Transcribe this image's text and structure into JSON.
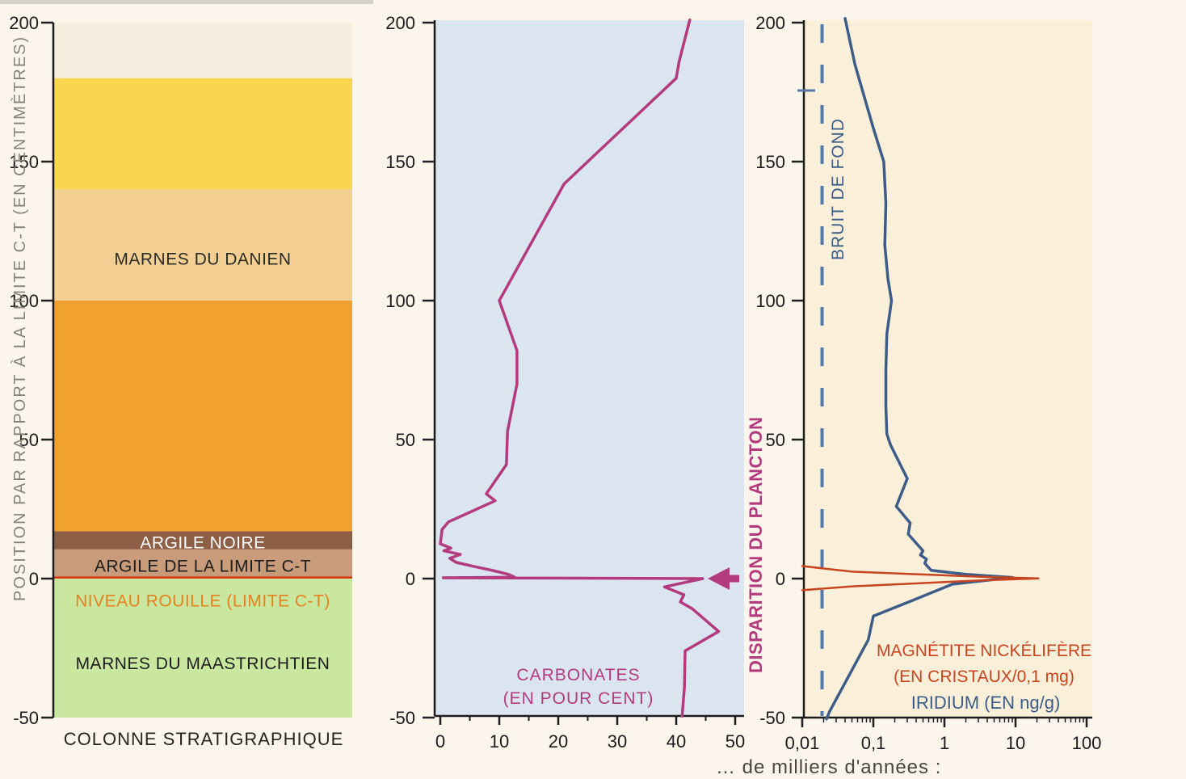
{
  "page": {
    "background": "#fcf5ec",
    "caption_fragment": "… de milliers d'années :"
  },
  "shared_axis": {
    "label": "POSITION PAR RAPPORT À LA LIMITE C-T (EN CENTIMÈTRES)",
    "ticks": [
      200,
      150,
      100,
      50,
      0,
      -50
    ],
    "ylim": [
      -50,
      200
    ]
  },
  "chart_data": [
    {
      "type": "table",
      "title": "COLONNE STRATIGRAPHIQUE",
      "ylabel": "POSITION PAR RAPPORT À LA LIMITE C-T (EN CENTIMÈTRES)",
      "ylim": [
        -50,
        200
      ],
      "yticks": [
        200,
        150,
        100,
        50,
        0,
        -50
      ],
      "layers": [
        {
          "name": "",
          "from": 180,
          "to": 200,
          "color": "#f6efdf"
        },
        {
          "name": "",
          "from": 140,
          "to": 180,
          "color": "#f8d64e"
        },
        {
          "name": "MARNES DU DANIEN",
          "from": 100,
          "to": 140,
          "color": "#f3cf93",
          "text_color": "#2b2b26",
          "text_y": 115
        },
        {
          "name": "",
          "from": 17,
          "to": 100,
          "color": "#f1a130"
        },
        {
          "name": "ARGILE NOIRE",
          "from": 10.5,
          "to": 17,
          "color": "#8e5f47",
          "text_color": "#ffffff",
          "text_y": 13
        },
        {
          "name": "ARGILE DE LA LIMITE C-T",
          "from": 0.8,
          "to": 10.5,
          "color": "#c89b7b",
          "text_color": "#1c1c1c",
          "text_y": 4.5
        },
        {
          "name": "NIVEAU ROUILLE (LIMITE C-T)",
          "from": 0,
          "to": 0.8,
          "color": "#d23c15",
          "text_color": "#e5821f",
          "text_y": -8
        },
        {
          "name": "MARNES DU MAASTRICHTIEN",
          "from": -50,
          "to": 0,
          "color": "#cae79f",
          "text_color": "#1c1c1c",
          "text_y": -30.5
        }
      ]
    },
    {
      "type": "line",
      "title_lines": [
        "CARBONATES",
        "(EN POUR CENT)"
      ],
      "color": "#b23a7d",
      "panel_bg": "#dbe5f0",
      "xlim": [
        0,
        50
      ],
      "ylim": [
        -50,
        200
      ],
      "xticks": [
        0,
        10,
        20,
        30,
        40,
        50
      ],
      "xminor": [
        5,
        15,
        25,
        35,
        45
      ],
      "annotation": "DISPARITION DU PLANCTON",
      "annotation_y": 0,
      "points": [
        [
          42.3,
          201
        ],
        [
          40.5,
          186
        ],
        [
          40,
          180
        ],
        [
          21,
          142
        ],
        [
          10,
          100
        ],
        [
          13,
          82
        ],
        [
          13,
          70
        ],
        [
          11.4,
          53
        ],
        [
          11.2,
          41
        ],
        [
          7.8,
          30.5
        ],
        [
          9.3,
          28
        ],
        [
          1.4,
          20.4
        ],
        [
          0.3,
          17.7
        ],
        [
          0,
          12.5
        ],
        [
          1.8,
          11
        ],
        [
          0.6,
          10
        ],
        [
          3.4,
          8.7
        ],
        [
          1.6,
          7.3
        ],
        [
          2.7,
          5.8
        ],
        [
          5.7,
          4.4
        ],
        [
          8.9,
          2.9
        ],
        [
          11.6,
          1.5
        ],
        [
          12.6,
          0.5
        ],
        [
          0.5,
          0.3
        ],
        [
          44.5,
          0
        ],
        [
          38,
          -3
        ],
        [
          41.3,
          -5.8
        ],
        [
          40.7,
          -8.4
        ],
        [
          42.7,
          -10.8
        ],
        [
          47.2,
          -19
        ],
        [
          41.5,
          -26
        ],
        [
          41.4,
          -39
        ],
        [
          41,
          -49.5
        ]
      ]
    },
    {
      "type": "line",
      "xscale": "log",
      "panel_bg": "#faf0da",
      "ylim": [
        -50,
        200
      ],
      "xticks": [
        "0,01",
        "0,1",
        "1",
        "10",
        "100"
      ],
      "xtick_values": [
        0.01,
        0.1,
        1,
        10,
        100
      ],
      "reference_line": {
        "label": "BRUIT DE FOND",
        "x": 0.019,
        "color": "#5578aa"
      },
      "series": [
        {
          "label": "IRIDIUM (EN ng/g)",
          "color": "#3d5c88",
          "points": [
            [
              0.04,
              201.5
            ],
            [
              0.055,
              185
            ],
            [
              0.1,
              162
            ],
            [
              0.14,
              150
            ],
            [
              0.15,
              135
            ],
            [
              0.145,
              120
            ],
            [
              0.16,
              108
            ],
            [
              0.18,
              100
            ],
            [
              0.155,
              88
            ],
            [
              0.15,
              75
            ],
            [
              0.15,
              62
            ],
            [
              0.155,
              52
            ],
            [
              0.175,
              48
            ],
            [
              0.3,
              36
            ],
            [
              0.21,
              26
            ],
            [
              0.33,
              20
            ],
            [
              0.31,
              16
            ],
            [
              0.5,
              10
            ],
            [
              0.46,
              8.5
            ],
            [
              0.56,
              7
            ],
            [
              0.53,
              5.5
            ],
            [
              0.65,
              3
            ],
            [
              2,
              1.5
            ],
            [
              9,
              0.4
            ],
            [
              1.3,
              -2
            ],
            [
              0.43,
              -7
            ],
            [
              0.14,
              -12
            ],
            [
              0.1,
              -13.5
            ],
            [
              0.085,
              -22
            ],
            [
              0.024,
              -48
            ],
            [
              0.022,
              -50.5
            ]
          ]
        },
        {
          "label_lines": [
            "MAGNÉTITE NICKÉLIFÈRE",
            "(EN CRISTAUX/0,1 mg)"
          ],
          "label": "MAGNÉTITE NICKÉLIFÈRE (EN CRISTAUX/0,1 mg)",
          "color": "#c8441e",
          "points": [
            [
              0.01,
              4.5
            ],
            [
              0.05,
              2.5
            ],
            [
              3,
              0.7
            ],
            [
              21,
              0.05
            ],
            [
              3,
              -0.7
            ],
            [
              0.05,
              -2.8
            ],
            [
              0.01,
              -4.2
            ]
          ]
        }
      ]
    }
  ]
}
